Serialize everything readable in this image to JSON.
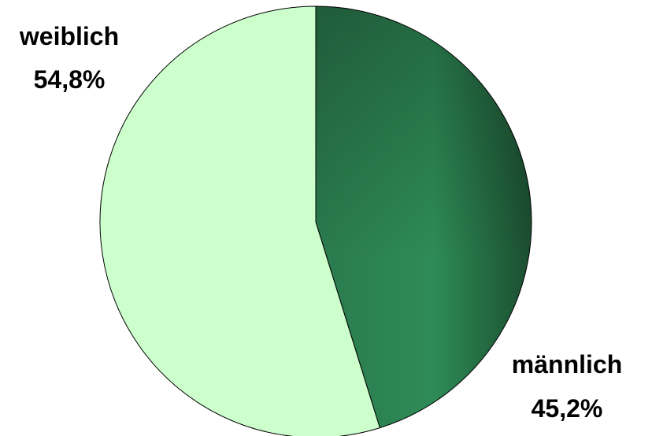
{
  "chart_data": {
    "type": "pie",
    "slices": [
      {
        "label": "männlich",
        "value": 45.2,
        "value_label": "45,2%",
        "color": "#2E8B57"
      },
      {
        "label": "weiblich",
        "value": 54.8,
        "value_label": "54,8%",
        "color": "#CCFFCC"
      }
    ],
    "start_angle": "12 o'clock",
    "direction": "clockwise",
    "legend": "none"
  }
}
